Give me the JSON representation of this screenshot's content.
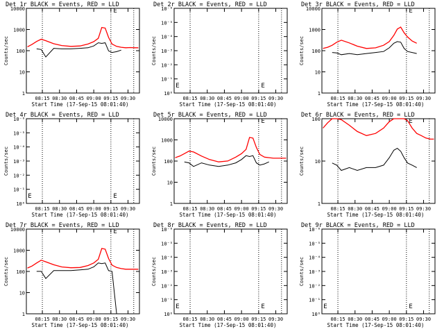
{
  "colors": {
    "events": "#000000",
    "lld": "#ff0000",
    "axis": "#000000",
    "background": "#ffffff"
  },
  "common": {
    "ylabel": "Counts/sec",
    "xlabel": "Start Time (17-Sep-15 08:01:40)",
    "x_tick_labels": [
      "08:15",
      "08:30",
      "08:45",
      "09:00",
      "09:15",
      "09:30"
    ],
    "vlines_time": [
      "08:15",
      "09:15",
      "09:35"
    ],
    "x_range": [
      "08:01",
      "09:40"
    ]
  },
  "chart_data": [
    {
      "type": "line",
      "title": "Det 1r BLACK = Events, RED = LLD",
      "ylim": [
        1,
        15000
      ],
      "yscale": "log",
      "y_tick_labels": [
        "1",
        "10",
        "100",
        "1000",
        "10000"
      ],
      "marker_label": "E",
      "marker_pos": "top",
      "x": [
        "08:02",
        "08:06",
        "08:10",
        "08:14",
        "08:18",
        "08:25",
        "08:32",
        "08:40",
        "08:48",
        "08:55",
        "09:00",
        "09:04",
        "09:07",
        "09:10",
        "09:13",
        "09:16",
        "09:20",
        "09:24",
        "09:28",
        "09:32",
        "09:36",
        "09:39"
      ],
      "series": [
        {
          "role": "lld",
          "values": [
            190,
            250,
            350,
            450,
            380,
            270,
            220,
            200,
            210,
            260,
            340,
            500,
            1700,
            1600,
            550,
            260,
            200,
            180,
            170,
            175,
            170,
            170
          ]
        },
        {
          "role": "events",
          "values": [
            null,
            null,
            150,
            140,
            60,
            160,
            150,
            150,
            160,
            170,
            210,
            300,
            280,
            300,
            120,
            100,
            110,
            130,
            null,
            null,
            null,
            null
          ]
        }
      ]
    },
    {
      "type": "line",
      "title": "Det 2r BLACK = Events, RED = LLD",
      "ylim": [
        1,
        1000000
      ],
      "yscale": "log",
      "y_tick_labels": [
        "10⁰",
        "10⁻¹",
        "10⁻²",
        "10⁻³",
        "10⁻⁴",
        "10⁻⁵",
        "10⁻⁶"
      ],
      "marker_label": "E",
      "marker_pos": "bottom",
      "series": []
    },
    {
      "type": "line",
      "title": "Det 3r BLACK = Events, RED = LLD",
      "ylim": [
        1,
        12000
      ],
      "yscale": "log",
      "y_tick_labels": [
        "1",
        "10",
        "100",
        "1000",
        "10000"
      ],
      "marker_label": "E",
      "marker_pos": "top",
      "x": [
        "08:02",
        "08:06",
        "08:10",
        "08:14",
        "08:18",
        "08:25",
        "08:32",
        "08:40",
        "08:48",
        "08:55",
        "09:00",
        "09:04",
        "09:07",
        "09:10",
        "09:13",
        "09:16",
        "09:20",
        "09:24",
        "09:28",
        "09:32",
        "09:36",
        "09:39"
      ],
      "series": [
        {
          "role": "lld",
          "values": [
            140,
            160,
            200,
            280,
            350,
            260,
            180,
            140,
            150,
            200,
            300,
            600,
            1200,
            1500,
            800,
            500,
            320,
            250,
            null,
            null,
            null,
            null
          ]
        },
        {
          "role": "events",
          "values": [
            null,
            null,
            90,
            85,
            70,
            80,
            70,
            80,
            90,
            100,
            150,
            250,
            300,
            280,
            140,
            100,
            90,
            80,
            null,
            null,
            null,
            null
          ]
        }
      ]
    },
    {
      "type": "line",
      "title": "Det 4r BLACK = Events, RED = LLD",
      "ylim": [
        1,
        1000000
      ],
      "yscale": "log",
      "y_tick_labels": [
        "10⁰",
        "10⁻¹",
        "10⁻²",
        "10⁻³",
        "10⁻⁴",
        "10⁻⁵",
        "10⁻⁶"
      ],
      "marker_label": "E",
      "marker_pos": "bottom",
      "series": []
    },
    {
      "type": "line",
      "title": "Det 5r BLACK = Events, RED = LLD",
      "ylim": [
        1,
        12000
      ],
      "yscale": "log",
      "y_tick_labels": [
        "1",
        "10",
        "100",
        "1000",
        "10000"
      ],
      "marker_label": "E",
      "marker_pos": "top",
      "x": [
        "08:02",
        "08:06",
        "08:10",
        "08:14",
        "08:18",
        "08:25",
        "08:32",
        "08:40",
        "08:48",
        "08:55",
        "09:00",
        "09:04",
        "09:07",
        "09:10",
        "09:13",
        "09:16",
        "09:20",
        "09:24",
        "09:28",
        "09:32",
        "09:36",
        "09:39"
      ],
      "series": [
        {
          "role": "lld",
          "values": [
            160,
            190,
            250,
            330,
            300,
            190,
            130,
            100,
            110,
            170,
            250,
            400,
            1500,
            1400,
            500,
            230,
            170,
            160,
            150,
            150,
            150,
            150
          ]
        },
        {
          "role": "events",
          "values": [
            null,
            null,
            100,
            90,
            60,
            90,
            70,
            60,
            70,
            90,
            130,
            200,
            180,
            200,
            90,
            70,
            80,
            100,
            null,
            null,
            null,
            null
          ]
        }
      ]
    },
    {
      "type": "line",
      "title": "Det 6r BLACK = Events, RED = LLD",
      "ylim": [
        1,
        100
      ],
      "yscale": "log",
      "y_tick_labels": [
        "1",
        "10",
        "100"
      ],
      "marker_label": "E",
      "marker_pos": "top",
      "x": [
        "08:02",
        "08:06",
        "08:10",
        "08:14",
        "08:18",
        "08:25",
        "08:32",
        "08:40",
        "08:48",
        "08:55",
        "09:00",
        "09:04",
        "09:07",
        "09:10",
        "09:13",
        "09:16",
        "09:20",
        "09:24",
        "09:28",
        "09:32",
        "09:36",
        "09:39"
      ],
      "series": [
        {
          "role": "lld",
          "values": [
            60,
            80,
            100,
            100,
            95,
            70,
            50,
            40,
            45,
            60,
            85,
            100,
            100,
            100,
            100,
            90,
            60,
            45,
            40,
            35,
            33,
            33
          ]
        },
        {
          "role": "events",
          "values": [
            null,
            null,
            9,
            8,
            6,
            7,
            6,
            7,
            7,
            8,
            12,
            18,
            20,
            17,
            12,
            9,
            8,
            7,
            null,
            null,
            null,
            null
          ]
        }
      ]
    },
    {
      "type": "line",
      "title": "Det 7r BLACK = Events, RED = LLD",
      "ylim": [
        1,
        12000
      ],
      "yscale": "log",
      "y_tick_labels": [
        "1",
        "10",
        "100",
        "1000",
        "10000"
      ],
      "marker_label": "E",
      "marker_pos": "top",
      "x": [
        "08:02",
        "08:06",
        "08:10",
        "08:14",
        "08:18",
        "08:25",
        "08:32",
        "08:40",
        "08:48",
        "08:55",
        "09:00",
        "09:04",
        "09:07",
        "09:10",
        "09:13",
        "09:16",
        "09:20",
        "09:24",
        "09:28",
        "09:32",
        "09:36",
        "09:39"
      ],
      "series": [
        {
          "role": "lld",
          "values": [
            160,
            200,
            280,
            380,
            320,
            230,
            180,
            165,
            170,
            210,
            280,
            420,
            1400,
            1300,
            460,
            220,
            170,
            150,
            140,
            140,
            140,
            140
          ]
        },
        {
          "role": "events",
          "values": [
            null,
            null,
            110,
            110,
            50,
            120,
            120,
            120,
            130,
            140,
            180,
            280,
            260,
            280,
            120,
            110,
            1,
            null,
            null,
            null,
            null,
            null
          ]
        }
      ]
    },
    {
      "type": "line",
      "title": "Det 8r BLACK = Events, RED = LLD",
      "ylim": [
        1,
        1000000
      ],
      "yscale": "log",
      "y_tick_labels": [
        "10⁰",
        "10⁻¹",
        "10⁻²",
        "10⁻³",
        "10⁻⁴",
        "10⁻⁵",
        "10⁻⁶"
      ],
      "marker_label": "E",
      "marker_pos": "bottom",
      "series": []
    },
    {
      "type": "line",
      "title": "Det 9r BLACK = Events, RED = LLD",
      "ylim": [
        1,
        1000000
      ],
      "yscale": "log",
      "y_tick_labels": [
        "10⁰",
        "10⁻¹",
        "10⁻²",
        "10⁻³",
        "10⁻⁴",
        "10⁻⁵",
        "10⁻⁶"
      ],
      "marker_label": "E",
      "marker_pos": "bottom",
      "series": []
    }
  ]
}
